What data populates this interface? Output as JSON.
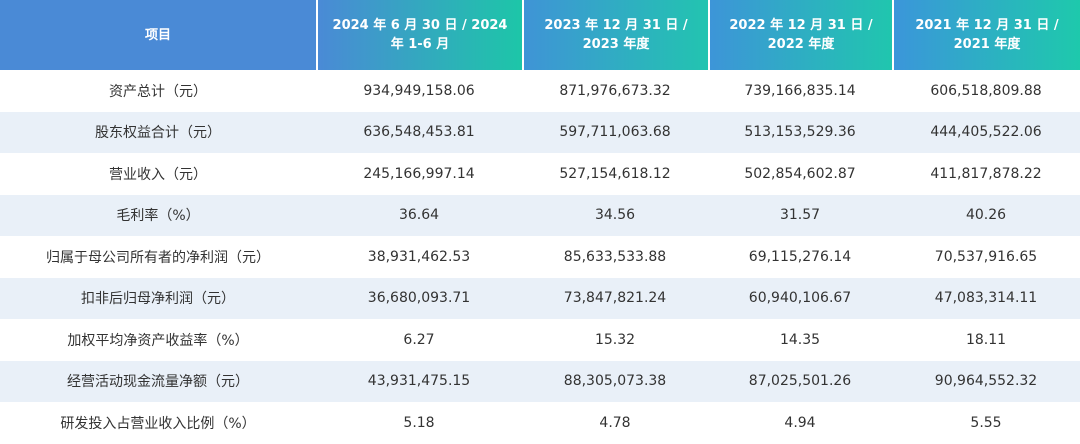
{
  "table": {
    "headers": [
      "项目",
      "2024 年 6 月 30 日 / 2024 年 1-6 月",
      "2023 年 12 月 31 日 / 2023 年度",
      "2022 年 12 月 31 日 / 2022 年度",
      "2021 年 12 月 31 日 / 2021 年度"
    ],
    "rows": [
      [
        "资产总计（元）",
        "934,949,158.06",
        "871,976,673.32",
        "739,166,835.14",
        "606,518,809.88"
      ],
      [
        "股东权益合计（元）",
        "636,548,453.81",
        "597,711,063.68",
        "513,153,529.36",
        "444,405,522.06"
      ],
      [
        "营业收入（元）",
        "245,166,997.14",
        "527,154,618.12",
        "502,854,602.87",
        "411,817,878.22"
      ],
      [
        "毛利率（%）",
        "36.64",
        "34.56",
        "31.57",
        "40.26"
      ],
      [
        "归属于母公司所有者的净利润（元）",
        "38,931,462.53",
        "85,633,533.88",
        "69,115,276.14",
        "70,537,916.65"
      ],
      [
        "扣非后归母净利润（元）",
        "36,680,093.71",
        "73,847,821.24",
        "60,940,106.67",
        "47,083,314.11"
      ],
      [
        "加权平均净资产收益率（%）",
        "6.27",
        "15.32",
        "14.35",
        "18.11"
      ],
      [
        "经营活动现金流量净额（元）",
        "43,931,475.15",
        "88,305,073.38",
        "87,025,501.26",
        "90,964,552.32"
      ],
      [
        "研发投入占营业收入比例（%）",
        "5.18",
        "4.78",
        "4.94",
        "5.55"
      ]
    ]
  }
}
